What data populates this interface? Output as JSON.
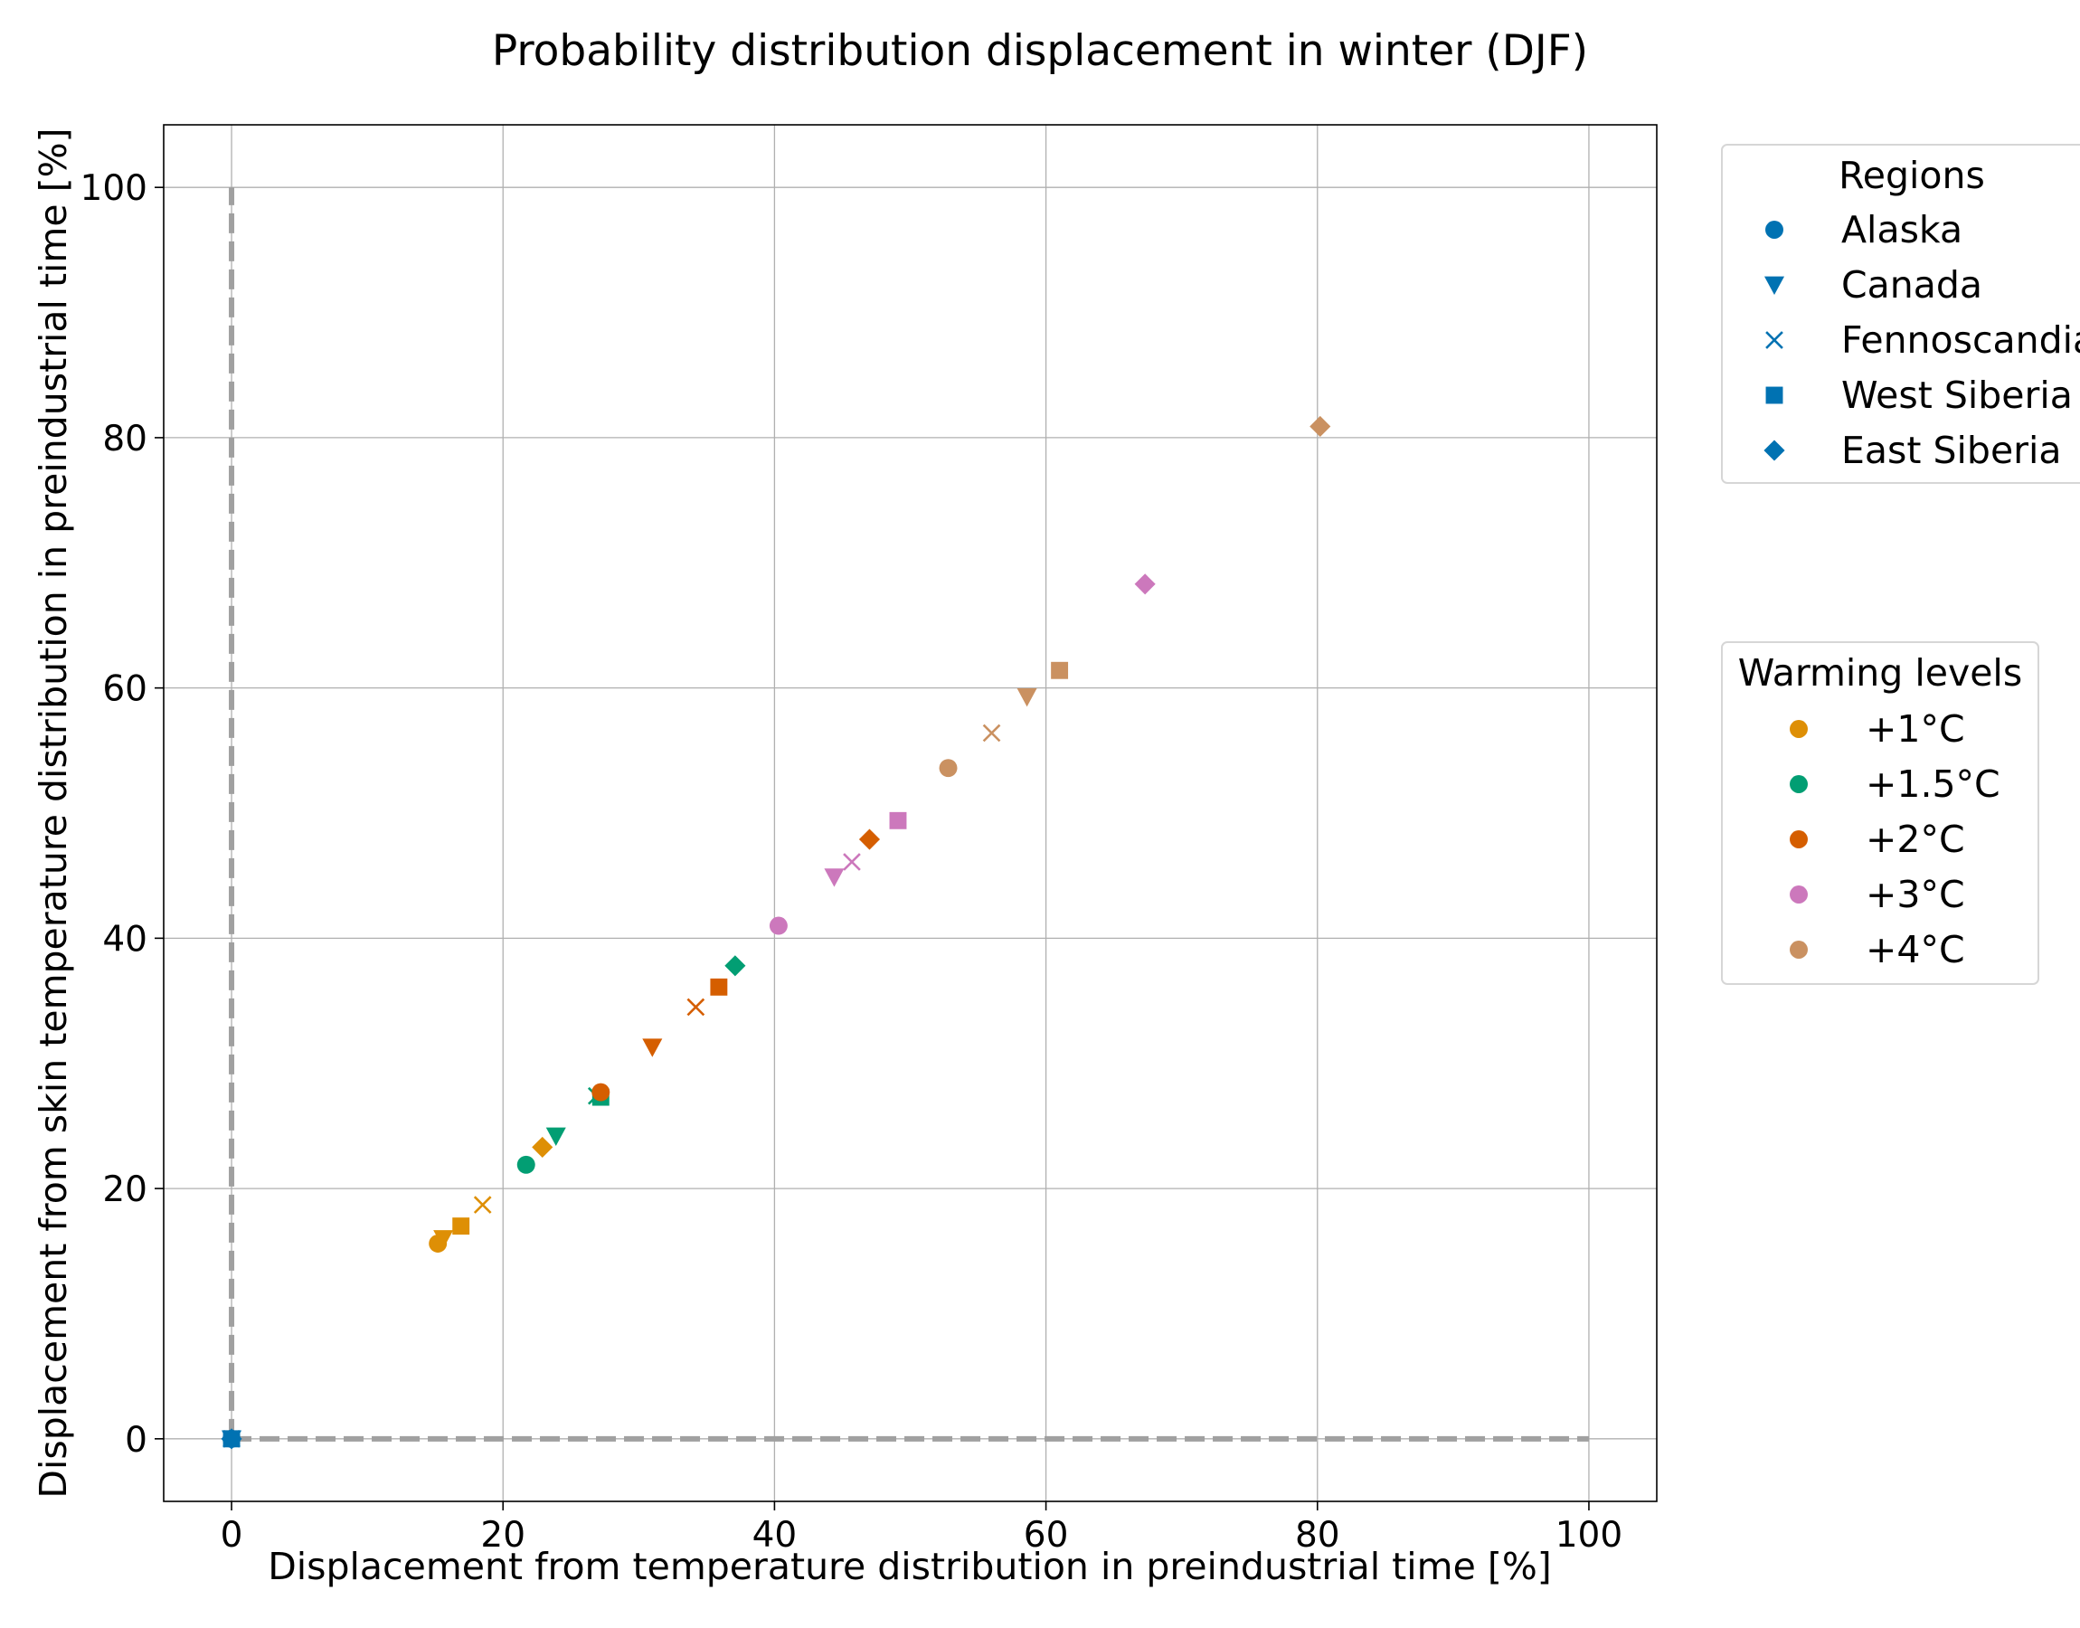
{
  "chart_data": {
    "type": "scatter",
    "title": "Probability distribution displacement in winter (DJF)",
    "xlabel": "Displacement from temperature distribution in preindustrial time [%]",
    "ylabel": "Displacement from skin temperature distribution in preindustrial time [%]",
    "xlim": [
      -5,
      105
    ],
    "ylim": [
      -5,
      105
    ],
    "xticks": [
      0,
      20,
      40,
      60,
      80,
      100
    ],
    "yticks": [
      0,
      20,
      40,
      60,
      80,
      100
    ],
    "grid": true,
    "reference_lines": {
      "style": "dashed",
      "color": "#a0a0a0",
      "lines": [
        {
          "axis": "x",
          "value": 0,
          "from": 0,
          "to": 100
        },
        {
          "axis": "y",
          "value": 0,
          "from": 0,
          "to": 100
        }
      ]
    },
    "regions_legend": {
      "title": "Regions",
      "placement": "upper right, outside plot",
      "entries": [
        {
          "name": "Alaska",
          "marker": "circle"
        },
        {
          "name": "Canada",
          "marker": "triangle-down"
        },
        {
          "name": "Fennoscandia",
          "marker": "x"
        },
        {
          "name": "West Siberia",
          "marker": "square"
        },
        {
          "name": "East Siberia",
          "marker": "diamond"
        }
      ],
      "marker_color": "#0072b2"
    },
    "warming_legend": {
      "title": "Warming levels",
      "placement": "middle right, outside plot",
      "entries": [
        {
          "name": "+1°C",
          "color": "#de8f05"
        },
        {
          "name": "+1.5°C",
          "color": "#029e73"
        },
        {
          "name": "+2°C",
          "color": "#d55e00"
        },
        {
          "name": "+3°C",
          "color": "#cc78bc"
        },
        {
          "name": "+4°C",
          "color": "#ca9161"
        }
      ]
    },
    "baseline": {
      "name": "",
      "color": "#0072b2",
      "points": [
        {
          "region": "Alaska",
          "marker": "circle",
          "x": 0,
          "y": 0
        },
        {
          "region": "Canada",
          "marker": "triangle-down",
          "x": 0,
          "y": 0
        },
        {
          "region": "Fennoscandia",
          "marker": "x",
          "x": 0,
          "y": 0
        },
        {
          "region": "West Siberia",
          "marker": "square",
          "x": 0,
          "y": 0
        },
        {
          "region": "East Siberia",
          "marker": "diamond",
          "x": 0,
          "y": 0
        }
      ]
    },
    "series": [
      {
        "name": "+1°C",
        "color": "#de8f05",
        "points": [
          {
            "region": "Alaska",
            "marker": "circle",
            "x": 15.2,
            "y": 15.6
          },
          {
            "region": "Canada",
            "marker": "triangle-down",
            "x": 15.6,
            "y": 16.0
          },
          {
            "region": "Fennoscandia",
            "marker": "x",
            "x": 18.5,
            "y": 18.7
          },
          {
            "region": "West Siberia",
            "marker": "square",
            "x": 16.9,
            "y": 17.0
          },
          {
            "region": "East Siberia",
            "marker": "diamond",
            "x": 22.9,
            "y": 23.3
          }
        ]
      },
      {
        "name": "+1.5°C",
        "color": "#029e73",
        "points": [
          {
            "region": "Alaska",
            "marker": "circle",
            "x": 21.7,
            "y": 21.9
          },
          {
            "region": "Canada",
            "marker": "triangle-down",
            "x": 23.9,
            "y": 24.2
          },
          {
            "region": "Fennoscandia",
            "marker": "x",
            "x": 26.9,
            "y": 27.4
          },
          {
            "region": "West Siberia",
            "marker": "square",
            "x": 27.2,
            "y": 27.3
          },
          {
            "region": "East Siberia",
            "marker": "diamond",
            "x": 37.1,
            "y": 37.8
          }
        ]
      },
      {
        "name": "+2°C",
        "color": "#d55e00",
        "points": [
          {
            "region": "Alaska",
            "marker": "circle",
            "x": 27.2,
            "y": 27.7
          },
          {
            "region": "Canada",
            "marker": "triangle-down",
            "x": 31.0,
            "y": 31.3
          },
          {
            "region": "Fennoscandia",
            "marker": "x",
            "x": 34.2,
            "y": 34.5
          },
          {
            "region": "West Siberia",
            "marker": "square",
            "x": 35.9,
            "y": 36.1
          },
          {
            "region": "East Siberia",
            "marker": "diamond",
            "x": 47.0,
            "y": 47.9
          }
        ]
      },
      {
        "name": "+3°C",
        "color": "#cc78bc",
        "points": [
          {
            "region": "Alaska",
            "marker": "circle",
            "x": 40.3,
            "y": 41.0
          },
          {
            "region": "Canada",
            "marker": "triangle-down",
            "x": 44.4,
            "y": 44.9
          },
          {
            "region": "Fennoscandia",
            "marker": "x",
            "x": 45.7,
            "y": 46.1
          },
          {
            "region": "West Siberia",
            "marker": "square",
            "x": 49.1,
            "y": 49.4
          },
          {
            "region": "East Siberia",
            "marker": "diamond",
            "x": 67.3,
            "y": 68.3
          }
        ]
      },
      {
        "name": "+4°C",
        "color": "#ca9161",
        "points": [
          {
            "region": "Alaska",
            "marker": "circle",
            "x": 52.8,
            "y": 53.6
          },
          {
            "region": "Canada",
            "marker": "triangle-down",
            "x": 58.6,
            "y": 59.3
          },
          {
            "region": "Fennoscandia",
            "marker": "x",
            "x": 56.0,
            "y": 56.4
          },
          {
            "region": "West Siberia",
            "marker": "square",
            "x": 61.0,
            "y": 61.4
          },
          {
            "region": "East Siberia",
            "marker": "diamond",
            "x": 80.2,
            "y": 80.9
          }
        ]
      }
    ]
  }
}
